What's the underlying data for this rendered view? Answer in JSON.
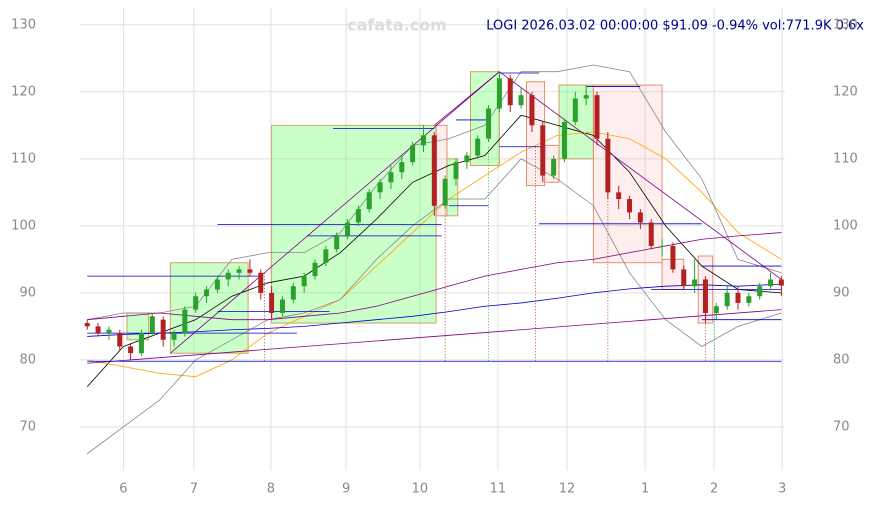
{
  "chart_data": {
    "type": "candlestick",
    "title": "LOGI 2026.03.02 00:00:00 $91.09 -0.94% vol:771.9K 0.6x",
    "watermark": "cafata.com",
    "up_color": "#2ca02c",
    "down_color": "#b22222",
    "grid": true,
    "xlim": [
      0,
      195
    ],
    "ylim": [
      63.5,
      132.5
    ],
    "xticks": [
      {
        "value": 12,
        "label": "6"
      },
      {
        "value": 31.5,
        "label": "7"
      },
      {
        "value": 52.8,
        "label": "8"
      },
      {
        "value": 73.6,
        "label": "9"
      },
      {
        "value": 94,
        "label": "10"
      },
      {
        "value": 115.6,
        "label": "11"
      },
      {
        "value": 134.7,
        "label": "12"
      },
      {
        "value": 156.3,
        "label": "1"
      },
      {
        "value": 175.4,
        "label": "2"
      },
      {
        "value": 194.2,
        "label": "3"
      }
    ],
    "yticks": [
      70,
      80,
      90,
      100,
      110,
      120,
      130
    ],
    "x": [
      2,
      5,
      8,
      11,
      14,
      17,
      20,
      23,
      26,
      29,
      32,
      35,
      38,
      41,
      44,
      47,
      50,
      53,
      56,
      59,
      62,
      65,
      68,
      71,
      74,
      77,
      80,
      83,
      86,
      89,
      92,
      95,
      98,
      101,
      104,
      107,
      110,
      113,
      116,
      119,
      122,
      125,
      128,
      131,
      134,
      137,
      140,
      143,
      146,
      149,
      152,
      155,
      158,
      161,
      164,
      167,
      170,
      173,
      176,
      179,
      182,
      185,
      188,
      191,
      194
    ],
    "open": [
      85.5,
      85,
      84,
      84,
      82,
      81,
      84,
      86,
      83,
      84,
      87.5,
      89.5,
      90.5,
      92,
      93,
      93.5,
      93,
      90,
      87,
      89,
      91,
      92.5,
      94.5,
      96.5,
      98.5,
      100.5,
      102.5,
      105,
      106.5,
      108,
      109.5,
      112,
      113.5,
      103,
      107,
      109.5,
      110.5,
      113,
      117.5,
      122,
      118,
      119.5,
      115,
      107.5,
      110,
      115.5,
      119,
      119.5,
      113,
      105,
      104,
      102,
      100.5,
      97,
      97,
      93.5,
      91,
      92,
      87,
      88,
      90,
      88.5,
      89.5,
      91,
      92
    ],
    "high": [
      86,
      85.5,
      85,
      84.5,
      82.5,
      84.5,
      87,
      86.5,
      84.5,
      88,
      90,
      91,
      92.5,
      93.5,
      94,
      95,
      93.5,
      91,
      89.5,
      91.5,
      93,
      95,
      97,
      99,
      101,
      103,
      105.5,
      107,
      109,
      110.5,
      112.5,
      115,
      114,
      107.5,
      110,
      111,
      113.5,
      118,
      123,
      122.5,
      120.5,
      120,
      115.5,
      110.5,
      116,
      120,
      121,
      120,
      114,
      106,
      104.5,
      102.5,
      101,
      98,
      97.5,
      94,
      95,
      92.5,
      88.5,
      91,
      91,
      90,
      91.5,
      93,
      92.5
    ],
    "low": [
      84.5,
      83.5,
      83,
      81.5,
      80,
      80.5,
      83.5,
      82,
      82,
      83.5,
      87,
      88.5,
      90,
      91,
      92,
      92.5,
      89,
      86,
      86.5,
      88.5,
      90,
      92,
      94,
      96,
      98,
      100,
      102,
      104,
      105.5,
      107,
      109,
      111,
      101.5,
      102.5,
      106,
      108.5,
      110,
      112.5,
      117,
      117,
      117.5,
      114,
      106.5,
      107,
      109.5,
      115,
      118,
      112,
      104,
      102.5,
      101,
      99.5,
      96.5,
      95.5,
      93,
      90.5,
      90,
      85.5,
      86,
      87.5,
      87.5,
      88,
      89,
      90.5,
      89.5
    ],
    "close": [
      85,
      84,
      84.5,
      82,
      81,
      84,
      86.5,
      83,
      84,
      87.5,
      89.5,
      90.5,
      92,
      93,
      93.5,
      93,
      90,
      87,
      89,
      91,
      92.5,
      94.5,
      96.5,
      98.5,
      100.5,
      102.5,
      105,
      106.5,
      108,
      109.5,
      112,
      113.5,
      103,
      107,
      109.5,
      110.5,
      113,
      117.5,
      122,
      118,
      119.5,
      115,
      107.5,
      110,
      115.5,
      119,
      119.5,
      113,
      105,
      104,
      102,
      100.5,
      97,
      97,
      93.5,
      91,
      92,
      87,
      88,
      90,
      88.5,
      89.5,
      91,
      92,
      91.09
    ],
    "overlay_x": [
      2,
      12,
      22,
      32,
      42,
      52,
      62,
      72,
      82,
      92,
      102,
      112,
      122,
      132,
      142,
      152,
      162,
      172,
      182,
      194
    ],
    "overlays": [
      {
        "color": "#000000",
        "values": [
          76,
          82,
          84,
          86,
          89.5,
          91.5,
          92.5,
          96,
          101,
          106.5,
          109,
          110.5,
          116.5,
          115,
          113.5,
          108,
          100,
          94,
          90.5,
          90
        ]
      },
      {
        "color": "#ffa500",
        "values": [
          80,
          79,
          78,
          77.5,
          80,
          84,
          86.5,
          89,
          94,
          99,
          104,
          107.5,
          111,
          113.5,
          114,
          113,
          110,
          105,
          99,
          95
        ]
      },
      {
        "color": "#888888",
        "values": [
          86,
          87,
          87,
          88,
          95,
          96,
          96,
          99,
          106,
          112,
          113,
          115,
          123,
          123,
          124,
          123,
          114,
          107,
          95,
          93
        ]
      },
      {
        "color": "#888888",
        "values": [
          66,
          70,
          74,
          80,
          83,
          86,
          87,
          89,
          95,
          100,
          104,
          104,
          110,
          107,
          103,
          93,
          86,
          82,
          85,
          87
        ]
      },
      {
        "color": "#800080",
        "values": [
          86,
          86.5,
          87,
          86.5,
          86,
          86,
          86.5,
          87,
          88,
          89.5,
          91,
          92.5,
          93.5,
          94.5,
          95,
          96,
          97,
          98,
          98.5,
          99
        ]
      },
      {
        "color": "#0000cc",
        "values": [
          83.5,
          83.8,
          84,
          84.2,
          84.5,
          84.7,
          85,
          85.5,
          86,
          86.5,
          87.2,
          88,
          88.5,
          89.2,
          90,
          90.6,
          91,
          91.2,
          91,
          91.3
        ]
      }
    ],
    "boxes": [
      {
        "x": [
          13,
          19
        ],
        "y": [
          83,
          87
        ],
        "color": "green"
      },
      {
        "x": [
          25,
          46.5
        ],
        "y": [
          81,
          94.5
        ],
        "color": "green"
      },
      {
        "x": [
          53,
          98.5
        ],
        "y": [
          85.5,
          115
        ],
        "color": "green"
      },
      {
        "x": [
          98.5,
          101.5
        ],
        "y": [
          101.5,
          115
        ],
        "color": "red"
      },
      {
        "x": [
          101.5,
          104.5
        ],
        "y": [
          101.5,
          110
        ],
        "color": "green"
      },
      {
        "x": [
          108,
          116
        ],
        "y": [
          109,
          123
        ],
        "color": "green"
      },
      {
        "x": [
          123.5,
          128.5
        ],
        "y": [
          106,
          121.5
        ],
        "color": "red"
      },
      {
        "x": [
          128.5,
          132.5
        ],
        "y": [
          106.5,
          112
        ],
        "color": "red"
      },
      {
        "x": [
          132.5,
          142
        ],
        "y": [
          110,
          121
        ],
        "color": "green"
      },
      {
        "x": [
          142,
          161
        ],
        "y": [
          94.5,
          121
        ],
        "color": "red"
      },
      {
        "x": [
          161,
          167
        ],
        "y": [
          90.5,
          95
        ],
        "color": "red"
      },
      {
        "x": [
          171,
          175
        ],
        "y": [
          85.5,
          95.5
        ],
        "color": "red"
      }
    ],
    "segments": [
      {
        "x": [
          25,
          116
        ],
        "y": [
          81,
          123
        ],
        "color": "#800080"
      },
      {
        "x": [
          98,
          116
        ],
        "y": [
          115,
          123
        ],
        "color": "#800080"
      },
      {
        "x": [
          116,
          194
        ],
        "y": [
          123,
          92
        ],
        "color": "#800080"
      },
      {
        "x": [
          2,
          194
        ],
        "y": [
          79.5,
          87.5
        ],
        "color": "#800080"
      },
      {
        "x": [
          2,
          194
        ],
        "y": [
          79.8,
          79.8
        ],
        "color": "#0000cc"
      },
      {
        "x": [
          2,
          50
        ],
        "y": [
          92.5,
          92.5
        ],
        "color": "#0000cc"
      },
      {
        "x": [
          2,
          60
        ],
        "y": [
          84,
          84
        ],
        "color": "#0000cc"
      },
      {
        "x": [
          38,
          69
        ],
        "y": [
          87.2,
          87.2
        ],
        "color": "#0000cc"
      },
      {
        "x": [
          38,
          100
        ],
        "y": [
          100.2,
          100.2
        ],
        "color": "#0000cc"
      },
      {
        "x": [
          63,
          100
        ],
        "y": [
          98.5,
          98.5
        ],
        "color": "#0000cc"
      },
      {
        "x": [
          70,
          98
        ],
        "y": [
          114.5,
          114.5
        ],
        "color": "#0000cc"
      },
      {
        "x": [
          102,
          113
        ],
        "y": [
          103,
          103
        ],
        "color": "#0000cc"
      },
      {
        "x": [
          104,
          113
        ],
        "y": [
          115.8,
          115.8
        ],
        "color": "#0000cc"
      },
      {
        "x": [
          116,
          127
        ],
        "y": [
          122.8,
          122.8
        ],
        "color": "#0000cc"
      },
      {
        "x": [
          116,
          128
        ],
        "y": [
          111.8,
          111.8
        ],
        "color": "#0000cc"
      },
      {
        "x": [
          127,
          172
        ],
        "y": [
          100.3,
          100.3
        ],
        "color": "#0000cc"
      },
      {
        "x": [
          140,
          155
        ],
        "y": [
          120.8,
          120.8
        ],
        "color": "#0000cc"
      },
      {
        "x": [
          158,
          194
        ],
        "y": [
          90.5,
          90.5
        ],
        "color": "#0000cc"
      },
      {
        "x": [
          172,
          194
        ],
        "y": [
          94,
          94
        ],
        "color": "#0000cc"
      },
      {
        "x": [
          172,
          194
        ],
        "y": [
          86,
          86
        ],
        "color": "#0000cc"
      }
    ],
    "vlines": [
      {
        "x": 51,
        "top": 93,
        "color": "#b22222"
      },
      {
        "x": 101,
        "top": 103,
        "color": "#b22222"
      },
      {
        "x": 113,
        "top": 112,
        "color": "#2ca02c"
      },
      {
        "x": 126,
        "top": 112,
        "color": "#b22222"
      },
      {
        "x": 146,
        "top": 105,
        "color": "#b22222"
      },
      {
        "x": 173,
        "top": 87,
        "color": "#b22222"
      },
      {
        "x": 175.5,
        "top": 87,
        "color": "#2ca02c"
      }
    ]
  }
}
